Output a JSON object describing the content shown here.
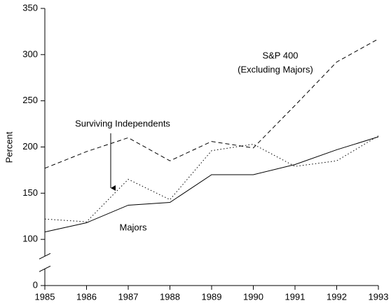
{
  "chart_data": {
    "type": "line",
    "y_label": "Percent",
    "xlim": [
      1985,
      1993
    ],
    "xticks": [
      1985,
      1986,
      1987,
      1988,
      1989,
      1990,
      1991,
      1992,
      1993
    ],
    "x": [
      1985,
      1986,
      1987,
      1988,
      1989,
      1990,
      1991,
      1992,
      1993
    ],
    "ylim": [
      0,
      350
    ],
    "yticks": [
      0,
      100,
      150,
      200,
      250,
      300,
      350
    ],
    "y_axis_break": [
      0,
      100
    ],
    "series": [
      {
        "name": "Majors",
        "color": "#000000",
        "dash": "solid",
        "values": [
          108,
          118,
          137,
          140,
          170,
          170,
          181,
          197,
          211
        ]
      },
      {
        "name": "S&P 400",
        "color": "#000000",
        "dash": "dashed",
        "values": [
          177,
          195,
          210,
          185,
          206,
          199,
          245,
          292,
          317
        ]
      },
      {
        "name": "Surviving Independents",
        "color": "#000000",
        "dash": "dotted",
        "values": [
          122,
          119,
          165,
          143,
          196,
          203,
          179,
          185,
          212
        ]
      }
    ],
    "annotations": [
      "(Excluding Majors)"
    ]
  }
}
